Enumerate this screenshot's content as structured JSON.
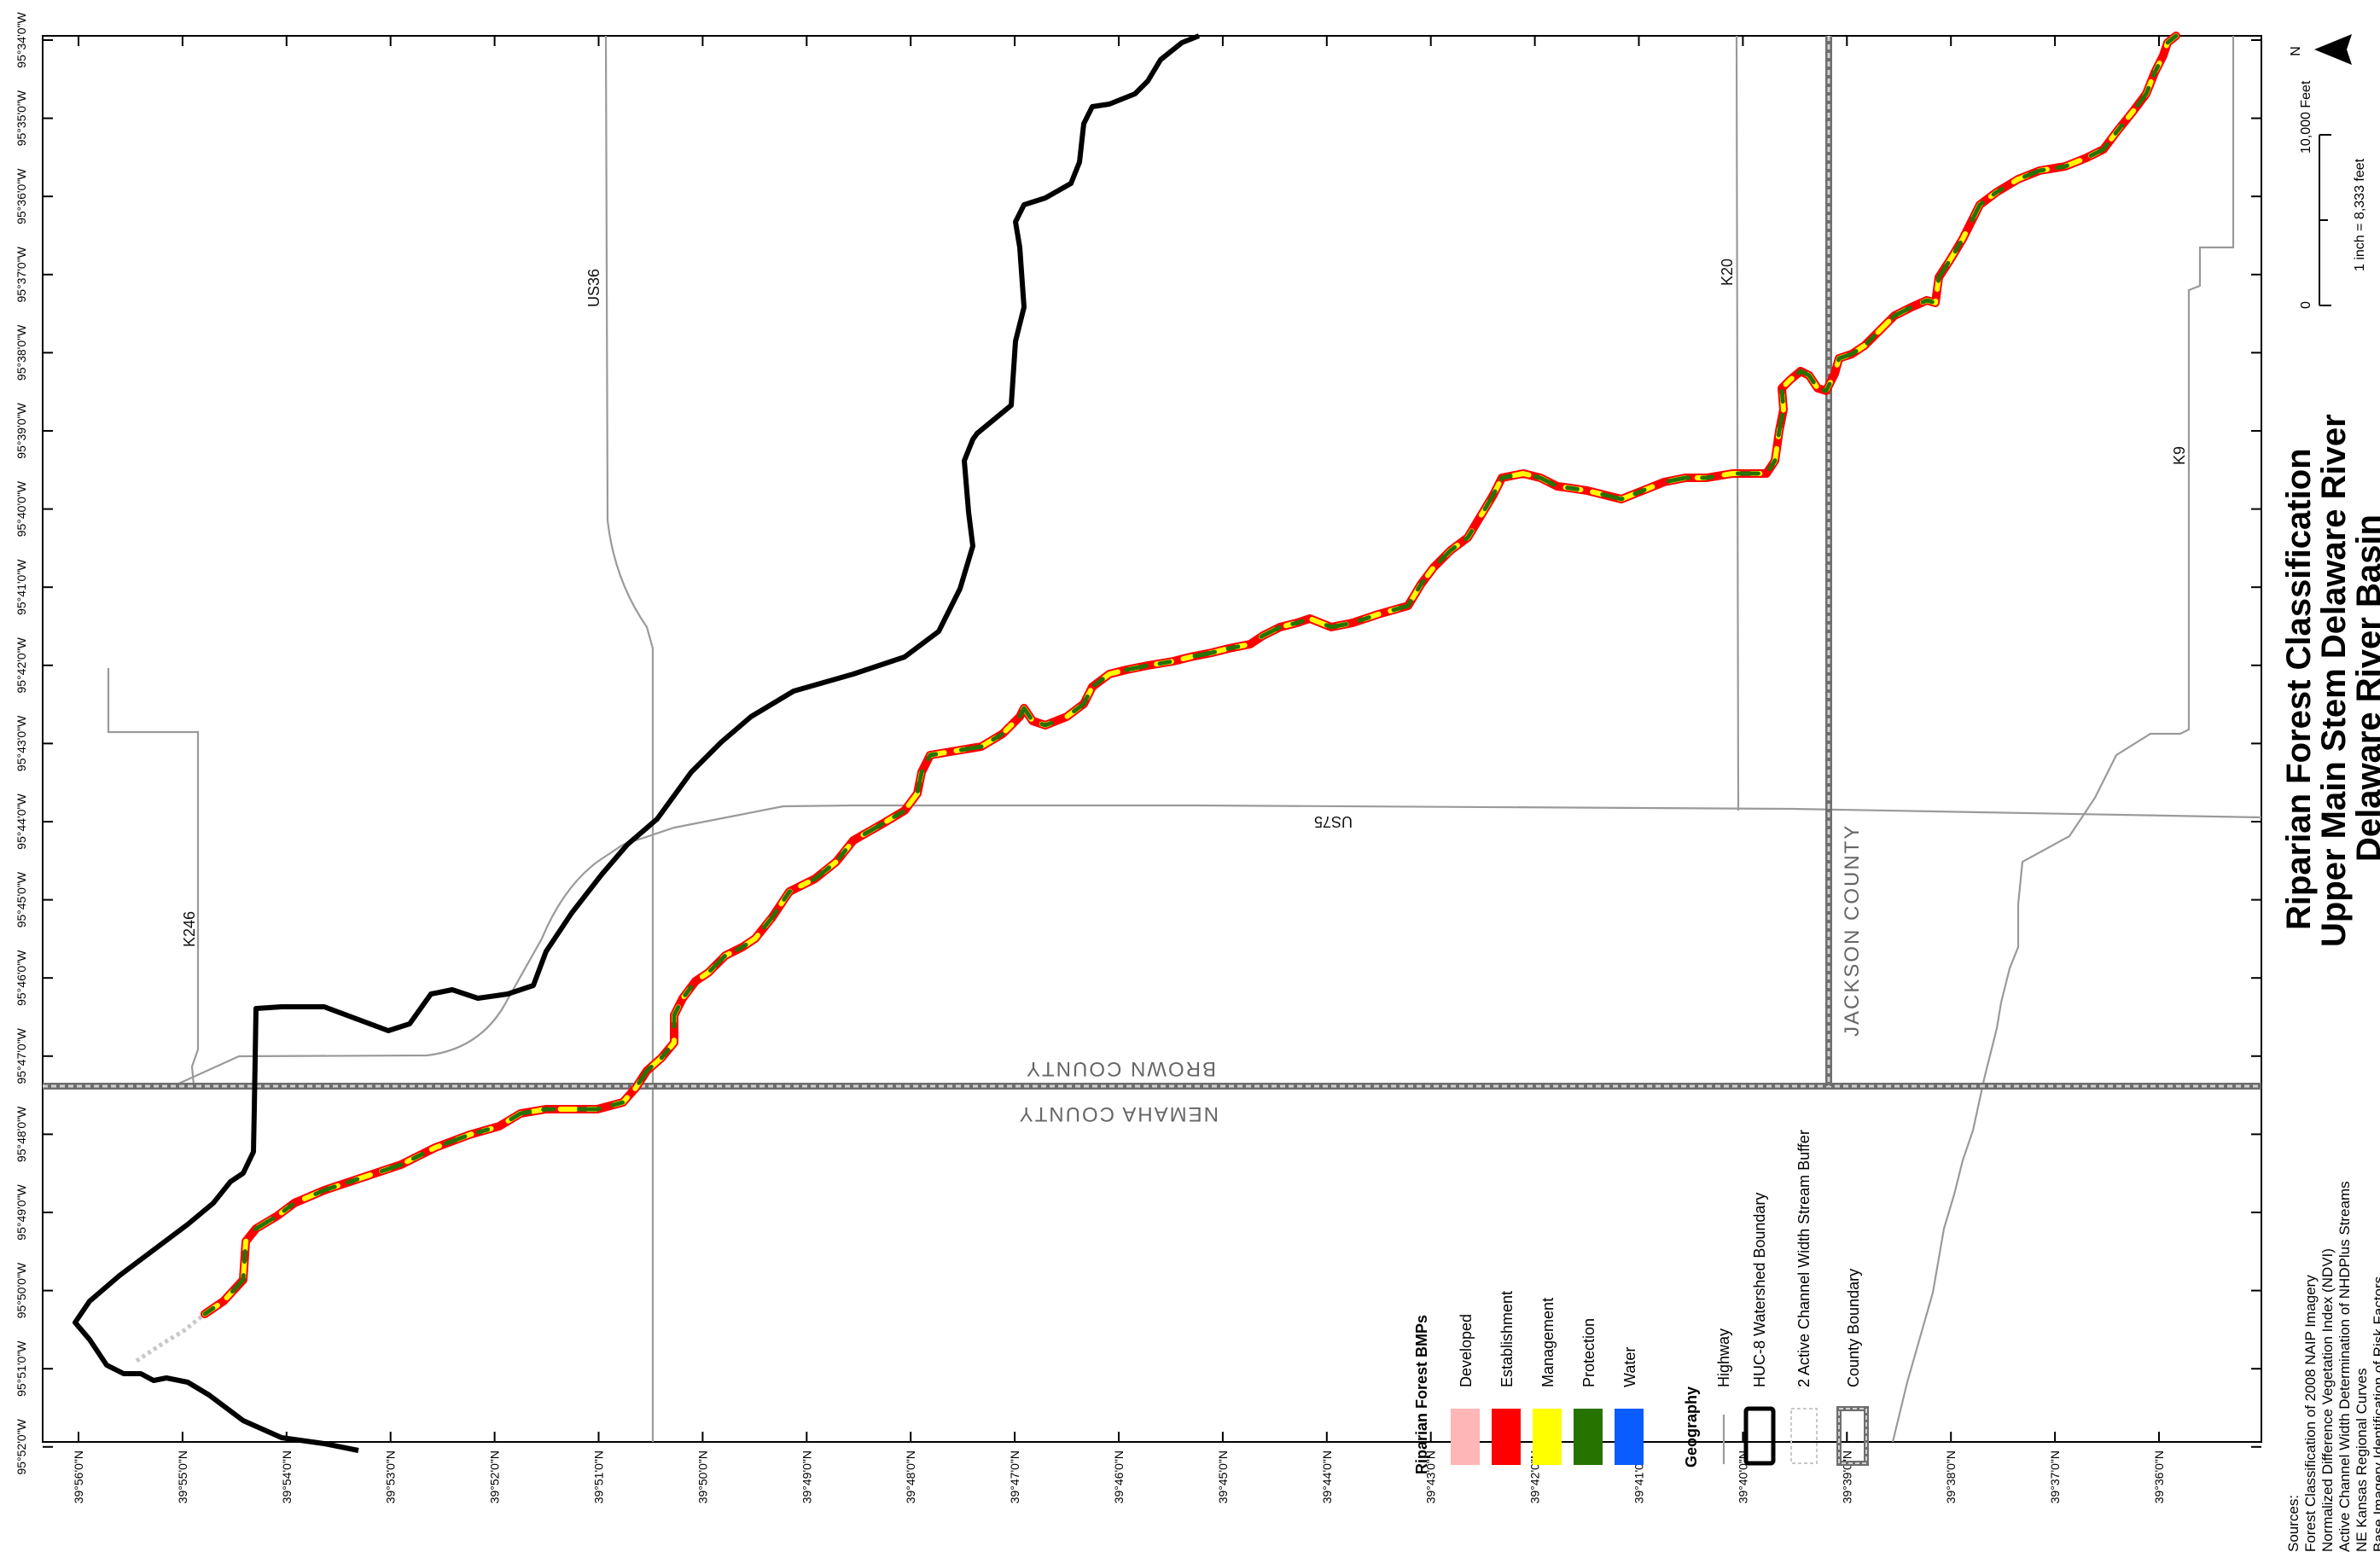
{
  "title": {
    "line1": "Riparian Forest Classification",
    "line2": "Upper Main Stem Delaware River",
    "line3": "Delaware River Basin"
  },
  "north_arrow": {
    "label": "N"
  },
  "scale": {
    "zero": "0",
    "distance": "10,000 Feet",
    "ratio": "1 inch = 8,333 feet"
  },
  "longitude_ticks": [
    "95°34'0\"W",
    "95°35'0\"W",
    "95°36'0\"W",
    "95°37'0\"W",
    "95°38'0\"W",
    "95°39'0\"W",
    "95°40'0\"W",
    "95°41'0\"W",
    "95°42'0\"W",
    "95°43'0\"W",
    "95°44'0\"W",
    "95°45'0\"W",
    "95°46'0\"W",
    "95°47'0\"W",
    "95°48'0\"W",
    "95°49'0\"W",
    "95°50'0\"W",
    "95°51'0\"W",
    "95°52'0\"W"
  ],
  "latitude_ticks": [
    "39°56'0\"N",
    "39°55'0\"N",
    "39°54'0\"N",
    "39°53'0\"N",
    "39°52'0\"N",
    "39°51'0\"N",
    "39°50'0\"N",
    "39°49'0\"N",
    "39°48'0\"N",
    "39°47'0\"N",
    "39°46'0\"N",
    "39°45'0\"N",
    "39°44'0\"N",
    "39°43'0\"N",
    "39°42'0\"N",
    "39°41'0\"N",
    "39°40'0\"N",
    "39°39'0\"N",
    "39°38'0\"N",
    "39°37'0\"N",
    "39°36'0\"N"
  ],
  "roads": {
    "us36": "US36",
    "k20": "K20",
    "k9": "K9",
    "us75": "US75",
    "k246": "K246"
  },
  "counties": {
    "brown": "BROWN COUNTY",
    "nemaha": "NEMAHA COUNTY",
    "jackson": "JACKSON COUNTY"
  },
  "legend": {
    "bmp_title": "Riparian Forest BMPs",
    "bmp_items": [
      {
        "label": "Developed",
        "color": "#ffb6b6"
      },
      {
        "label": "Establishment",
        "color": "#ff0000"
      },
      {
        "label": "Management",
        "color": "#ffff00"
      },
      {
        "label": "Protection",
        "color": "#267300"
      },
      {
        "label": "Water",
        "color": "#0a5cff"
      }
    ],
    "geo_title": "Geography",
    "geo_items": [
      {
        "label": "Highway",
        "icon": "highway-line"
      },
      {
        "label": "HUC-8 Watershed Boundary",
        "icon": "watershed-boundary"
      },
      {
        "label": "2 Active Channel Width Stream Buffer",
        "icon": "stream-buffer"
      },
      {
        "label": "County Boundary",
        "icon": "county-boundary"
      }
    ]
  },
  "sources": {
    "heading": "Sources:",
    "lines": [
      "Forest Classification of 2008 NAIP Imagery",
      "Normalized Difference Vegetation Index (NDVI)",
      "Active Channel Width Determination of NHDPlus Streams",
      "NE Kansas Regional Curves",
      "Base Imagery Identification of Risk Factors"
    ]
  }
}
